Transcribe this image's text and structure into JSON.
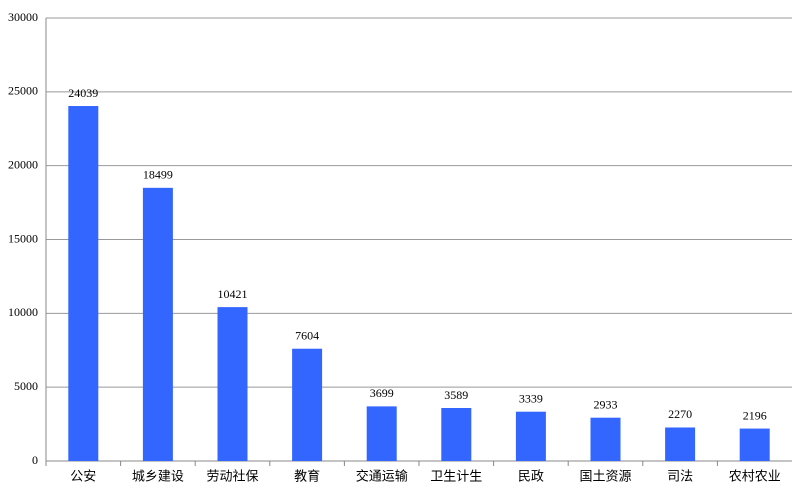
{
  "chart_data": {
    "type": "bar",
    "categories": [
      "公安",
      "城乡建设",
      "劳动社保",
      "教育",
      "交通运输",
      "卫生计生",
      "民政",
      "国土资源",
      "司法",
      "农村农业"
    ],
    "values": [
      24039,
      18499,
      10421,
      7604,
      3699,
      3589,
      3339,
      2933,
      2270,
      2196
    ],
    "color": "#3366ff",
    "ylim": [
      0,
      30000
    ],
    "yticks": [
      0,
      5000,
      10000,
      15000,
      20000,
      25000,
      30000
    ],
    "grid": true
  }
}
